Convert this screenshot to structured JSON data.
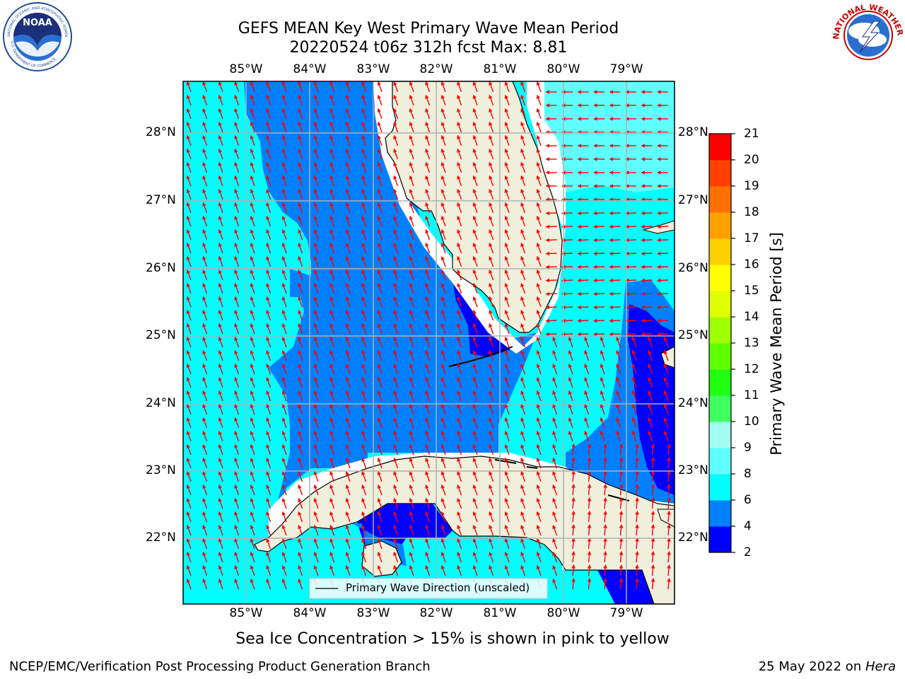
{
  "title_line1": "GEFS MEAN Key West Primary Wave Mean Period",
  "title_line2": "20220524 t06z 312h fcst   Max: 8.81",
  "logos": {
    "noaa_text": "NOAA",
    "noaa_ring": "NATIONAL OCEANIC AND ATMOSPHERIC ADMINISTRATION",
    "noaa_ring_bottom": "U.S. DEPARTMENT OF COMMERCE",
    "nws_ring": "NATIONAL WEATHER SERVICE"
  },
  "lon_labels": [
    "85°W",
    "84°W",
    "83°W",
    "82°W",
    "81°W",
    "80°W",
    "79°W"
  ],
  "lat_labels": [
    "28°N",
    "27°N",
    "26°N",
    "25°N",
    "24°N",
    "23°N",
    "22°N"
  ],
  "legend_label": "Primary Wave Direction (unscaled)",
  "colorbar": {
    "label": "Primary Wave Mean Period [s]",
    "ticks": [
      "2",
      "4",
      "6",
      "8",
      "9",
      "10",
      "11",
      "12",
      "13",
      "14",
      "15",
      "16",
      "17",
      "18",
      "19",
      "20",
      "21"
    ],
    "colors": [
      "#0000ff",
      "#0080ff",
      "#00ffff",
      "#60ffff",
      "#a0fff0",
      "#40ff60",
      "#20ff10",
      "#60ff00",
      "#a0ff00",
      "#e0ff00",
      "#ffff00",
      "#ffd000",
      "#ffa000",
      "#ff7000",
      "#ff4000",
      "#ff0000"
    ]
  },
  "caption": "Sea Ice Concentration > 15% is shown in pink to yellow",
  "footer_left": "NCEP/EMC/Verification Post Processing Product Generation Branch",
  "footer_right_prefix": "25 May 2022 on ",
  "footer_right_host": "Hera",
  "colors": {
    "land": "#efefdc",
    "arrow": "#ff0000",
    "grid": "#b0b0b0",
    "band_2_4": "#0000ff",
    "band_4_6": "#0080ff",
    "band_6_8": "#00ffff",
    "band_8_9": "#60ffff"
  }
}
